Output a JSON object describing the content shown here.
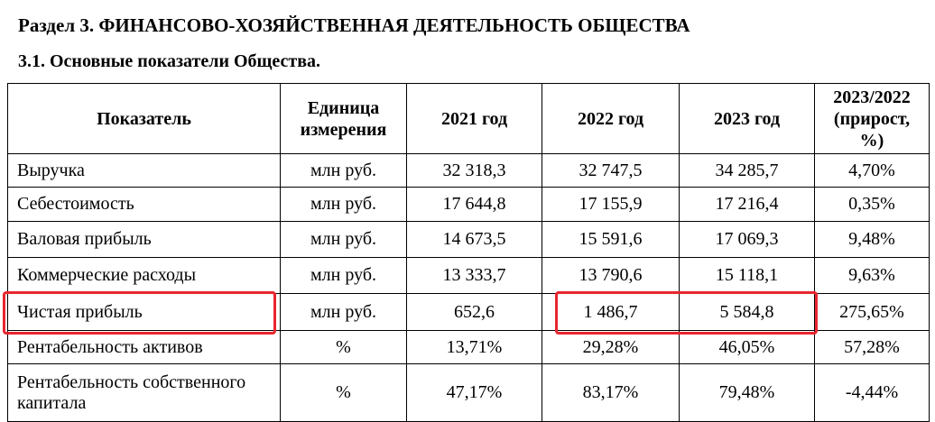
{
  "header": {
    "section": "Раздел 3. ФИНАНСОВО-ХОЗЯЙСТВЕННАЯ ДЕЯТЕЛЬНОСТЬ ОБЩЕСТВА",
    "subsection": "3.1. Основные показатели Общества."
  },
  "table": {
    "columns": [
      "Показатель",
      "Единица измерения",
      "2021 год",
      "2022 год",
      "2023 год",
      "2023/2022 (прирост, %)"
    ],
    "rows": [
      [
        "Выручка",
        "млн руб.",
        "32 318,3",
        "32 747,5",
        "34 285,7",
        "4,70%"
      ],
      [
        "Себестоимость",
        "млн руб.",
        "17 644,8",
        "17 155,9",
        "17 216,4",
        "0,35%"
      ],
      [
        "Валовая прибыль",
        "млн руб.",
        "14 673,5",
        "15 591,6",
        "17 069,3",
        "9,48%"
      ],
      [
        "Коммерческие расходы",
        "млн руб.",
        "13 333,7",
        "13 790,6",
        "15 118,1",
        "9,63%"
      ],
      [
        "Чистая прибыль",
        "млн руб.",
        "652,6",
        "1 486,7",
        "5 584,8",
        "275,65%"
      ],
      [
        "Рентабельность активов",
        "%",
        "13,71%",
        "29,28%",
        "46,05%",
        "57,28%"
      ],
      [
        "Рентабельность собственного капитала",
        "%",
        "47,17%",
        "83,17%",
        "79,48%",
        "-4,44%"
      ]
    ]
  }
}
